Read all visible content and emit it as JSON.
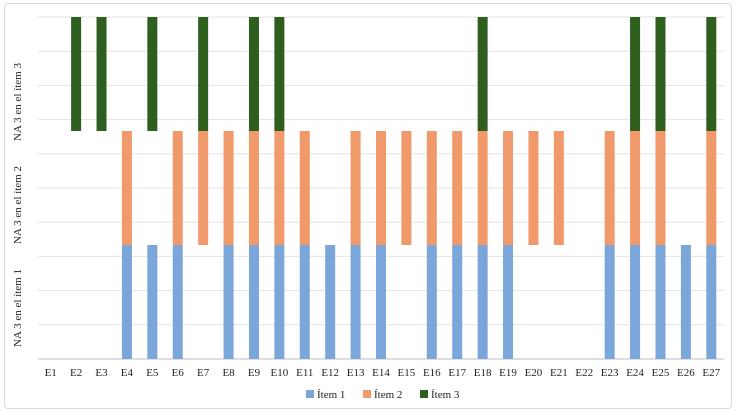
{
  "chart_data": {
    "type": "bar",
    "stacked": true,
    "categories": [
      "E1",
      "E2",
      "E3",
      "E4",
      "E5",
      "E6",
      "E7",
      "E8",
      "E9",
      "E10",
      "E11",
      "E12",
      "E13",
      "E14",
      "E15",
      "E16",
      "E17",
      "E18",
      "E19",
      "E20",
      "E21",
      "E22",
      "E23",
      "E24",
      "E25",
      "E26",
      "E27"
    ],
    "series": [
      {
        "name": "Ítem 1",
        "color": "#7aa6d9",
        "values": [
          0,
          0,
          0,
          1,
          1,
          1,
          0,
          1,
          1,
          1,
          1,
          1,
          1,
          1,
          0,
          1,
          1,
          1,
          1,
          0,
          0,
          0,
          1,
          1,
          1,
          1,
          1
        ]
      },
      {
        "name": "Ítem 2",
        "color": "#f0996a",
        "values": [
          0,
          0,
          0,
          1,
          0,
          1,
          1,
          1,
          1,
          1,
          1,
          0,
          1,
          1,
          1,
          1,
          1,
          1,
          1,
          1,
          1,
          0,
          1,
          1,
          1,
          0,
          1
        ]
      },
      {
        "name": "Ítem 3",
        "color": "#2e5f1f",
        "values": [
          0,
          1,
          1,
          0,
          1,
          0,
          1,
          0,
          1,
          1,
          0,
          0,
          0,
          0,
          0,
          0,
          0,
          1,
          0,
          0,
          0,
          0,
          0,
          1,
          1,
          0,
          1
        ]
      }
    ],
    "ylabels": [
      "NA 3 en el ítem 1",
      "NA 3 en el ítem 2",
      "NA 3 en el ítem 3"
    ],
    "ylim": [
      0,
      3
    ],
    "grid": true,
    "legend": "bottom"
  }
}
